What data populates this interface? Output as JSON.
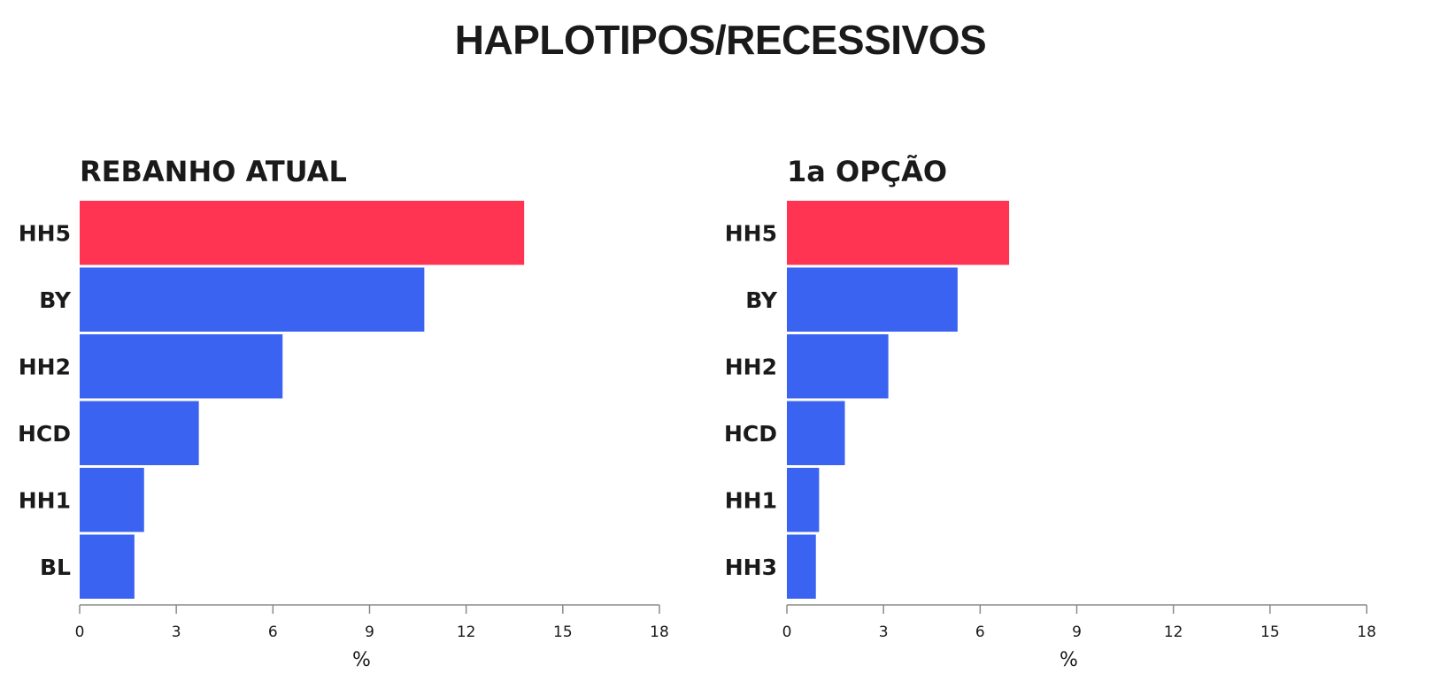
{
  "title": "HAPLOTIPOS/RECESSIVOS",
  "colors": {
    "highlight": "#ff3352",
    "bar": "#3b63f2",
    "axis": "#8a8a8a",
    "text": "#1a1a1a"
  },
  "chart_data": [
    {
      "type": "bar",
      "orientation": "horizontal",
      "title": "REBANHO ATUAL",
      "categories": [
        "HH5",
        "BY",
        "HH2",
        "HCD",
        "HH1",
        "BL"
      ],
      "values": [
        13.8,
        10.7,
        6.3,
        3.7,
        2.0,
        1.7
      ],
      "highlight_index": 0,
      "xlabel": "%",
      "xlim": [
        0,
        18
      ],
      "xticks": [
        0,
        3,
        6,
        9,
        12,
        15,
        18
      ],
      "grid": false
    },
    {
      "type": "bar",
      "orientation": "horizontal",
      "title": "1a OPÇÃO",
      "categories": [
        "HH5",
        "BY",
        "HH2",
        "HCD",
        "HH1",
        "HH3"
      ],
      "values": [
        6.9,
        5.3,
        3.15,
        1.8,
        1.0,
        0.9
      ],
      "highlight_index": 0,
      "xlabel": "%",
      "xlim": [
        0,
        18
      ],
      "xticks": [
        0,
        3,
        6,
        9,
        12,
        15,
        18
      ],
      "grid": false
    }
  ]
}
